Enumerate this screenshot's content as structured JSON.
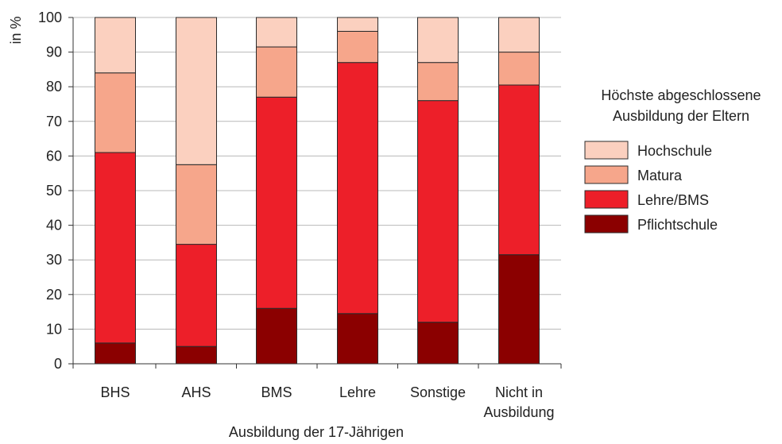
{
  "chart_data": {
    "type": "bar",
    "stacked": true,
    "categories": [
      "BHS",
      "AHS",
      "BMS",
      "Lehre",
      "Sonstige",
      "Nicht in Ausbildung"
    ],
    "category_lines": [
      [
        "BHS"
      ],
      [
        "AHS"
      ],
      [
        "BMS"
      ],
      [
        "Lehre"
      ],
      [
        "Sonstige"
      ],
      [
        "Nicht in",
        "Ausbildung"
      ]
    ],
    "series": [
      {
        "name": "Pflichtschule",
        "color": "#8b0000",
        "values": [
          6,
          5,
          16,
          14.5,
          12,
          31.5
        ]
      },
      {
        "name": "Lehre/BMS",
        "color": "#ed1f29",
        "values": [
          55,
          29.5,
          61,
          72.5,
          64,
          49
        ]
      },
      {
        "name": "Matura",
        "color": "#f6a68b",
        "values": [
          23,
          23,
          14.5,
          9,
          11,
          9.5
        ]
      },
      {
        "name": "Hochschule",
        "color": "#fbd0bf",
        "values": [
          16,
          42.5,
          8.5,
          4,
          13,
          10
        ]
      }
    ],
    "ylim": [
      0,
      100
    ],
    "yticks": [
      0,
      10,
      20,
      30,
      40,
      50,
      60,
      70,
      80,
      90,
      100
    ],
    "yticks_label": [
      "0",
      "10",
      "20",
      "30",
      "40",
      "50",
      "60",
      "70",
      "80",
      "90",
      "100"
    ],
    "ylabel": "in %",
    "xlabel": "Ausbildung der 17-Jährigen",
    "grid": true,
    "legend": {
      "title_lines": [
        "Höchste abgeschlossene",
        "Ausbildung der Eltern"
      ],
      "order": [
        "Hochschule",
        "Matura",
        "Lehre/BMS",
        "Pflichtschule"
      ],
      "position": "right"
    }
  }
}
